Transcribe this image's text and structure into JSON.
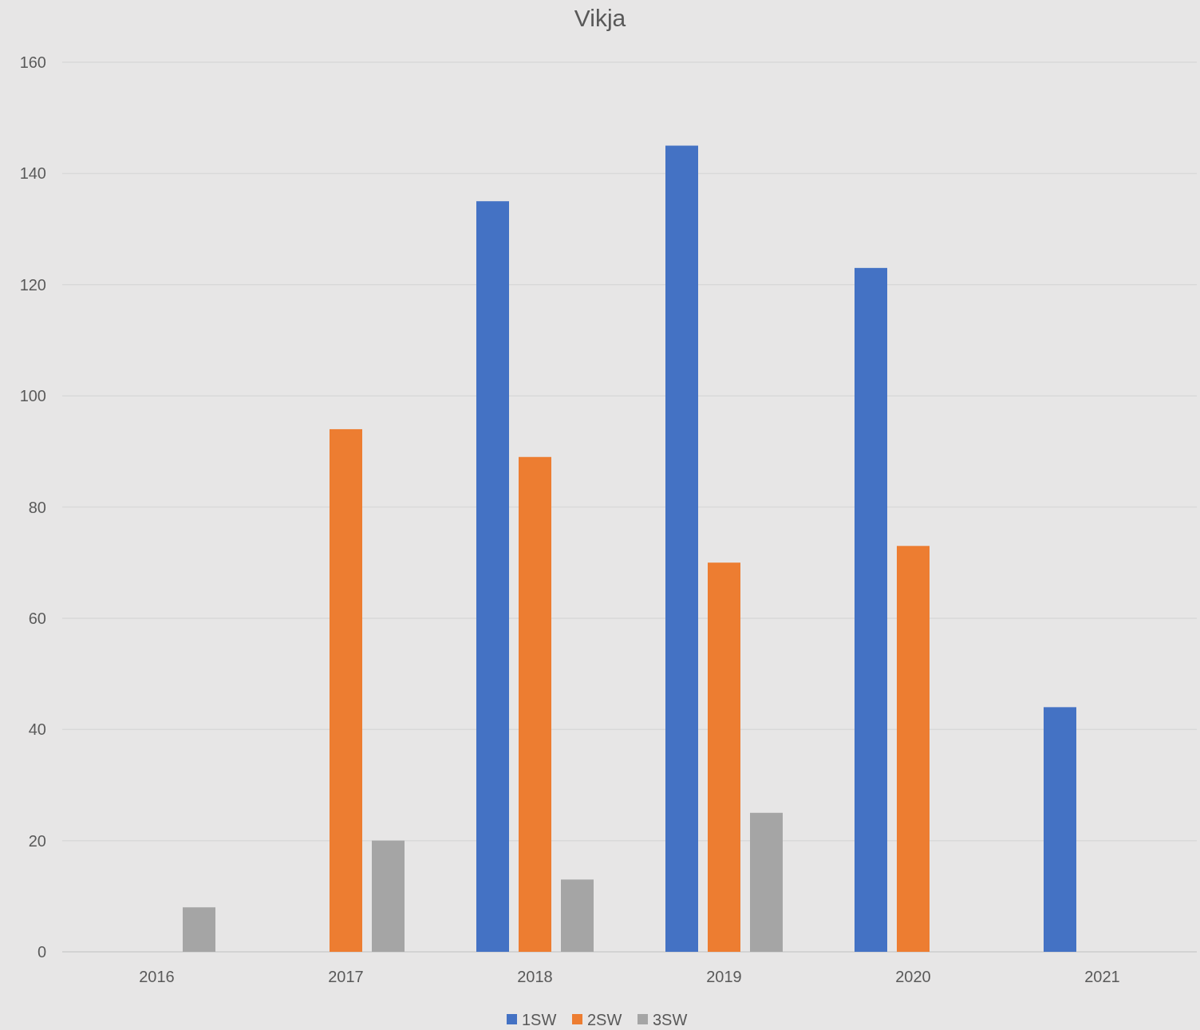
{
  "chart_data": {
    "type": "bar",
    "title": "Vikja",
    "categories": [
      "2016",
      "2017",
      "2018",
      "2019",
      "2020",
      "2021"
    ],
    "series": [
      {
        "name": "1SW",
        "color": "#4472c4",
        "values": [
          null,
          null,
          135,
          145,
          123,
          44
        ]
      },
      {
        "name": "2SW",
        "color": "#ed7d31",
        "values": [
          null,
          94,
          89,
          70,
          73,
          null
        ]
      },
      {
        "name": "3SW",
        "color": "#a5a5a5",
        "values": [
          8,
          20,
          13,
          25,
          null,
          null
        ]
      }
    ],
    "ylim": [
      0,
      160
    ],
    "yticks": [
      0,
      20,
      40,
      60,
      80,
      100,
      120,
      140,
      160
    ],
    "grid": "y",
    "legend": "bottom"
  }
}
